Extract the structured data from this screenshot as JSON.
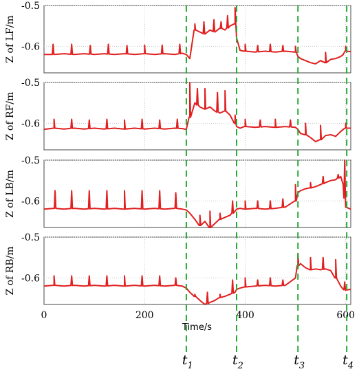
{
  "chart_data": {
    "type": "line",
    "xlabel": "Time/s",
    "xlim": [
      0,
      610
    ],
    "xticks": [
      0,
      200,
      400,
      600
    ],
    "xtick_labels": [
      "0",
      "200",
      "400",
      "600"
    ],
    "ylim": [
      -0.665,
      -0.5
    ],
    "yticks": [
      -0.5,
      -0.6
    ],
    "ytick_labels": [
      "-0.5",
      "-0.6"
    ],
    "grid": true,
    "line_color": "#e02020",
    "marker_color": "#22aa33",
    "markers": [
      {
        "label": "t",
        "sub": "1",
        "x": 283
      },
      {
        "label": "t",
        "sub": "2",
        "x": 383
      },
      {
        "label": "t",
        "sub": "3",
        "x": 505
      },
      {
        "label": "t",
        "sub": "4",
        "x": 602
      }
    ],
    "panels": [
      {
        "ylabel": "Z of LF/m",
        "series": [
          {
            "x": [
              0,
              20,
              40,
              60,
              80,
              100,
              120,
              140,
              160,
              180,
              200,
              220,
              240,
              260,
              275,
              283,
              290,
              300,
              310,
              320,
              330,
              340,
              350,
              360,
              370,
              380,
              383,
              390,
              400,
              420,
              440,
              460,
              480,
              500,
              505,
              510,
              520,
              530,
              540,
              550,
              560,
              570,
              580,
              590,
              595,
              600,
              610
            ],
            "y": [
              -0.62,
              -0.62,
              -0.618,
              -0.62,
              -0.618,
              -0.62,
              -0.618,
              -0.62,
              -0.618,
              -0.62,
              -0.618,
              -0.62,
              -0.618,
              -0.62,
              -0.617,
              -0.62,
              -0.63,
              -0.56,
              -0.565,
              -0.57,
              -0.56,
              -0.565,
              -0.555,
              -0.56,
              -0.55,
              -0.545,
              -0.58,
              -0.61,
              -0.612,
              -0.614,
              -0.612,
              -0.614,
              -0.612,
              -0.614,
              -0.625,
              -0.63,
              -0.635,
              -0.64,
              -0.643,
              -0.635,
              -0.64,
              -0.632,
              -0.63,
              -0.625,
              -0.62,
              -0.612,
              -0.613
            ]
          }
        ],
        "spikes": [
          {
            "x": [
              18,
              55,
              92,
              128,
              165,
              200,
              235,
              270,
              300,
              318,
              338,
              352,
              365,
              380,
              400,
              425,
              450,
              475,
              500,
              560,
              600
            ],
            "y": [
              -0.595,
              -0.595,
              -0.598,
              -0.595,
              -0.598,
              -0.597,
              -0.597,
              -0.595,
              -0.545,
              -0.54,
              -0.535,
              -0.54,
              -0.525,
              -0.505,
              -0.595,
              -0.598,
              -0.595,
              -0.598,
              -0.6,
              -0.615,
              -0.6
            ]
          }
        ]
      },
      {
        "ylabel": "Z of RF/m",
        "series": [
          {
            "x": [
              0,
              20,
              40,
              60,
              80,
              100,
              120,
              140,
              160,
              180,
              200,
              220,
              240,
              260,
              275,
              283,
              290,
              300,
              310,
              320,
              330,
              340,
              350,
              360,
              370,
              380,
              383,
              390,
              400,
              420,
              440,
              460,
              480,
              500,
              505,
              510,
              520,
              530,
              540,
              550,
              560,
              570,
              580,
              590,
              595,
              600,
              610
            ],
            "y": [
              -0.615,
              -0.612,
              -0.614,
              -0.612,
              -0.614,
              -0.612,
              -0.614,
              -0.612,
              -0.614,
              -0.612,
              -0.614,
              -0.612,
              -0.614,
              -0.612,
              -0.613,
              -0.615,
              -0.585,
              -0.55,
              -0.56,
              -0.565,
              -0.56,
              -0.57,
              -0.575,
              -0.57,
              -0.58,
              -0.6,
              -0.608,
              -0.612,
              -0.608,
              -0.61,
              -0.608,
              -0.61,
              -0.608,
              -0.61,
              -0.615,
              -0.625,
              -0.628,
              -0.635,
              -0.645,
              -0.64,
              -0.63,
              -0.628,
              -0.632,
              -0.62,
              -0.615,
              -0.612,
              -0.612
            ]
          }
        ],
        "spikes": [
          {
            "x": [
              20,
              55,
              90,
              125,
              160,
              195,
              230,
              265,
              290,
              305,
              320,
              345,
              360,
              380,
              400,
              430,
              460,
              490,
              520,
              550,
              600
            ],
            "y": [
              -0.59,
              -0.59,
              -0.592,
              -0.59,
              -0.592,
              -0.59,
              -0.592,
              -0.59,
              -0.5,
              -0.515,
              -0.515,
              -0.525,
              -0.52,
              -0.58,
              -0.59,
              -0.592,
              -0.59,
              -0.592,
              -0.6,
              -0.605,
              -0.6
            ]
          }
        ]
      },
      {
        "ylabel": "Z of LB/m",
        "series": [
          {
            "x": [
              0,
              20,
              40,
              60,
              80,
              100,
              120,
              140,
              160,
              180,
              200,
              220,
              240,
              260,
              275,
              283,
              290,
              300,
              310,
              320,
              330,
              340,
              350,
              360,
              370,
              380,
              383,
              390,
              400,
              420,
              440,
              460,
              480,
              500,
              505,
              510,
              520,
              530,
              540,
              550,
              560,
              570,
              580,
              590,
              595,
              600,
              610
            ],
            "y": [
              -0.62,
              -0.618,
              -0.62,
              -0.618,
              -0.62,
              -0.618,
              -0.62,
              -0.618,
              -0.62,
              -0.618,
              -0.62,
              -0.618,
              -0.62,
              -0.618,
              -0.62,
              -0.622,
              -0.63,
              -0.645,
              -0.66,
              -0.65,
              -0.665,
              -0.655,
              -0.645,
              -0.64,
              -0.635,
              -0.625,
              -0.62,
              -0.618,
              -0.62,
              -0.618,
              -0.62,
              -0.618,
              -0.615,
              -0.6,
              -0.58,
              -0.575,
              -0.57,
              -0.568,
              -0.565,
              -0.56,
              -0.555,
              -0.55,
              -0.548,
              -0.54,
              -0.56,
              -0.615,
              -0.62
            ]
          }
        ],
        "spikes": [
          {
            "x": [
              22,
              55,
              90,
              125,
              160,
              195,
              230,
              262,
              310,
              330,
              350,
              375,
              400,
              425,
              450,
              475,
              500,
              530,
              555,
              585,
              598
            ],
            "y": [
              -0.575,
              -0.575,
              -0.575,
              -0.575,
              -0.575,
              -0.575,
              -0.575,
              -0.58,
              -0.635,
              -0.625,
              -0.63,
              -0.6,
              -0.6,
              -0.6,
              -0.6,
              -0.595,
              -0.56,
              -0.555,
              -0.54,
              -0.535,
              -0.5
            ]
          }
        ]
      },
      {
        "ylabel": "Z of RB/m",
        "series": [
          {
            "x": [
              0,
              20,
              40,
              60,
              80,
              100,
              120,
              140,
              160,
              180,
              200,
              220,
              240,
              260,
              275,
              283,
              290,
              300,
              310,
              320,
              330,
              340,
              350,
              360,
              370,
              380,
              383,
              390,
              400,
              420,
              440,
              460,
              480,
              500,
              505,
              510,
              520,
              530,
              540,
              550,
              560,
              570,
              580,
              590,
              595,
              600,
              610
            ],
            "y": [
              -0.62,
              -0.618,
              -0.62,
              -0.618,
              -0.62,
              -0.618,
              -0.62,
              -0.618,
              -0.62,
              -0.618,
              -0.62,
              -0.618,
              -0.62,
              -0.618,
              -0.62,
              -0.625,
              -0.635,
              -0.645,
              -0.655,
              -0.665,
              -0.66,
              -0.655,
              -0.648,
              -0.645,
              -0.64,
              -0.635,
              -0.628,
              -0.625,
              -0.622,
              -0.62,
              -0.618,
              -0.62,
              -0.618,
              -0.6,
              -0.57,
              -0.565,
              -0.575,
              -0.58,
              -0.578,
              -0.58,
              -0.578,
              -0.582,
              -0.6,
              -0.62,
              -0.628,
              -0.63,
              -0.628
            ]
          }
        ],
        "spikes": [
          {
            "x": [
              20,
              55,
              90,
              125,
              160,
              195,
              230,
              262,
              300,
              325,
              350,
              375,
              400,
              425,
              450,
              475,
              505,
              530,
              555,
              580,
              598
            ],
            "y": [
              -0.595,
              -0.595,
              -0.595,
              -0.595,
              -0.595,
              -0.595,
              -0.595,
              -0.6,
              -0.64,
              -0.635,
              -0.64,
              -0.605,
              -0.6,
              -0.605,
              -0.6,
              -0.605,
              -0.54,
              -0.55,
              -0.55,
              -0.555,
              -0.61
            ]
          }
        ]
      }
    ]
  }
}
